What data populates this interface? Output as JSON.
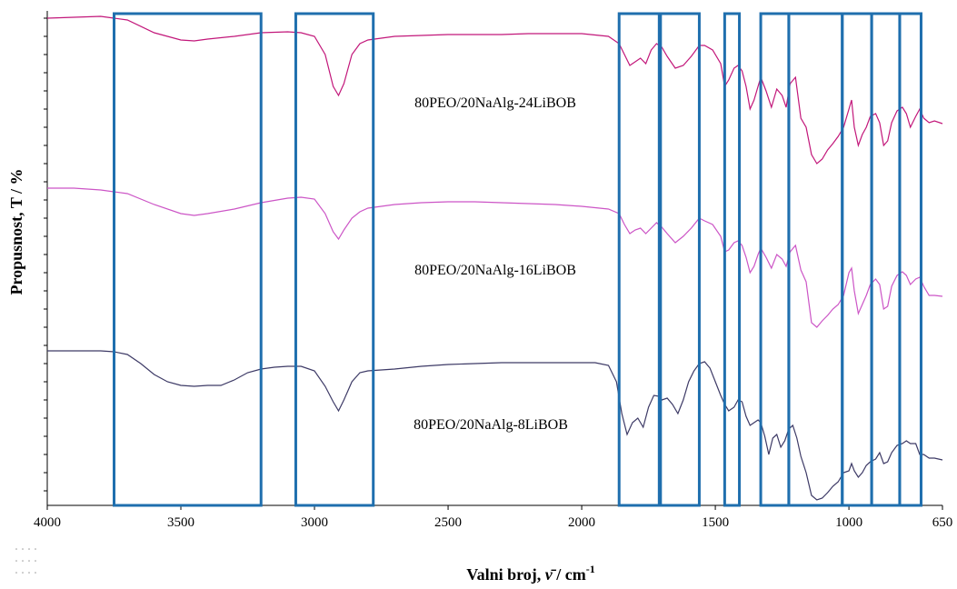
{
  "chart_data": {
    "type": "line",
    "title": "",
    "xlabel": {
      "main": "Valni broj, ",
      "symbol": "ν̄",
      "unit": " / cm",
      "sup": "-1"
    },
    "ylabel": "Propusnost, T / %",
    "xlim": [
      4000,
      650
    ],
    "x_reversed": true,
    "x_ticks": [
      4000,
      3500,
      3000,
      2500,
      2000,
      1500,
      1000,
      650
    ],
    "grid": false,
    "legend": "none",
    "highlight_color": "#1f6fae",
    "highlight_bands": [
      {
        "from": 3750,
        "to": 3200
      },
      {
        "from": 3070,
        "to": 2780
      },
      {
        "from": 1860,
        "to": 1710
      },
      {
        "from": 1705,
        "to": 1560
      },
      {
        "from": 1465,
        "to": 1410
      },
      {
        "from": 1330,
        "to": 1225
      },
      {
        "from": 1225,
        "to": 1025
      },
      {
        "from": 1025,
        "to": 915
      },
      {
        "from": 915,
        "to": 810
      },
      {
        "from": 810,
        "to": 730
      }
    ],
    "series": [
      {
        "name": "80PEO/20NaAlg-24LiBOB",
        "color": "#c2177a",
        "y_offset": 0,
        "points": [
          [
            4000,
            20
          ],
          [
            3900,
            19
          ],
          [
            3800,
            18
          ],
          [
            3750,
            20
          ],
          [
            3700,
            22
          ],
          [
            3600,
            36
          ],
          [
            3500,
            44
          ],
          [
            3450,
            45
          ],
          [
            3400,
            43
          ],
          [
            3300,
            40
          ],
          [
            3200,
            36
          ],
          [
            3100,
            35
          ],
          [
            3050,
            36
          ],
          [
            3000,
            40
          ],
          [
            2960,
            60
          ],
          [
            2930,
            95
          ],
          [
            2910,
            105
          ],
          [
            2890,
            92
          ],
          [
            2860,
            60
          ],
          [
            2830,
            48
          ],
          [
            2800,
            44
          ],
          [
            2700,
            40
          ],
          [
            2600,
            39
          ],
          [
            2500,
            38
          ],
          [
            2400,
            38
          ],
          [
            2300,
            38
          ],
          [
            2200,
            37
          ],
          [
            2100,
            37
          ],
          [
            2000,
            37
          ],
          [
            1900,
            40
          ],
          [
            1860,
            48
          ],
          [
            1840,
            60
          ],
          [
            1820,
            72
          ],
          [
            1800,
            68
          ],
          [
            1780,
            64
          ],
          [
            1760,
            70
          ],
          [
            1740,
            55
          ],
          [
            1720,
            48
          ],
          [
            1700,
            52
          ],
          [
            1680,
            62
          ],
          [
            1650,
            75
          ],
          [
            1620,
            72
          ],
          [
            1590,
            62
          ],
          [
            1560,
            50
          ],
          [
            1540,
            50
          ],
          [
            1510,
            55
          ],
          [
            1480,
            70
          ],
          [
            1465,
            95
          ],
          [
            1450,
            88
          ],
          [
            1430,
            75
          ],
          [
            1415,
            72
          ],
          [
            1400,
            78
          ],
          [
            1385,
            95
          ],
          [
            1370,
            120
          ],
          [
            1355,
            110
          ],
          [
            1340,
            95
          ],
          [
            1330,
            85
          ],
          [
            1310,
            100
          ],
          [
            1290,
            118
          ],
          [
            1270,
            98
          ],
          [
            1250,
            105
          ],
          [
            1235,
            118
          ],
          [
            1220,
            92
          ],
          [
            1200,
            85
          ],
          [
            1180,
            130
          ],
          [
            1160,
            140
          ],
          [
            1140,
            170
          ],
          [
            1120,
            180
          ],
          [
            1100,
            175
          ],
          [
            1080,
            165
          ],
          [
            1060,
            158
          ],
          [
            1040,
            150
          ],
          [
            1020,
            140
          ],
          [
            1000,
            120
          ],
          [
            990,
            110
          ],
          [
            980,
            140
          ],
          [
            965,
            160
          ],
          [
            950,
            148
          ],
          [
            935,
            140
          ],
          [
            920,
            128
          ],
          [
            900,
            125
          ],
          [
            885,
            135
          ],
          [
            870,
            160
          ],
          [
            855,
            155
          ],
          [
            840,
            135
          ],
          [
            820,
            122
          ],
          [
            800,
            118
          ],
          [
            785,
            125
          ],
          [
            770,
            140
          ],
          [
            750,
            128
          ],
          [
            735,
            120
          ],
          [
            720,
            130
          ],
          [
            700,
            135
          ],
          [
            680,
            133
          ],
          [
            650,
            136
          ]
        ]
      },
      {
        "name": "80PEO/20NaAlg-16LiBOB",
        "color": "#cc55c6",
        "y_offset": 185,
        "points": [
          [
            4000,
            22
          ],
          [
            3900,
            22
          ],
          [
            3800,
            24
          ],
          [
            3700,
            28
          ],
          [
            3600,
            40
          ],
          [
            3500,
            50
          ],
          [
            3450,
            52
          ],
          [
            3400,
            50
          ],
          [
            3300,
            45
          ],
          [
            3200,
            38
          ],
          [
            3100,
            33
          ],
          [
            3050,
            32
          ],
          [
            3000,
            34
          ],
          [
            2960,
            50
          ],
          [
            2930,
            70
          ],
          [
            2910,
            78
          ],
          [
            2890,
            68
          ],
          [
            2860,
            55
          ],
          [
            2830,
            48
          ],
          [
            2800,
            44
          ],
          [
            2700,
            40
          ],
          [
            2600,
            38
          ],
          [
            2500,
            37
          ],
          [
            2400,
            37
          ],
          [
            2300,
            38
          ],
          [
            2200,
            39
          ],
          [
            2100,
            40
          ],
          [
            2000,
            42
          ],
          [
            1900,
            45
          ],
          [
            1860,
            50
          ],
          [
            1840,
            62
          ],
          [
            1820,
            72
          ],
          [
            1800,
            68
          ],
          [
            1780,
            66
          ],
          [
            1760,
            72
          ],
          [
            1740,
            66
          ],
          [
            1720,
            60
          ],
          [
            1700,
            65
          ],
          [
            1680,
            72
          ],
          [
            1650,
            82
          ],
          [
            1620,
            75
          ],
          [
            1590,
            66
          ],
          [
            1560,
            55
          ],
          [
            1540,
            58
          ],
          [
            1510,
            62
          ],
          [
            1480,
            75
          ],
          [
            1465,
            92
          ],
          [
            1450,
            90
          ],
          [
            1430,
            82
          ],
          [
            1415,
            80
          ],
          [
            1400,
            85
          ],
          [
            1385,
            98
          ],
          [
            1370,
            115
          ],
          [
            1355,
            108
          ],
          [
            1340,
            95
          ],
          [
            1330,
            88
          ],
          [
            1310,
            98
          ],
          [
            1290,
            110
          ],
          [
            1270,
            95
          ],
          [
            1250,
            100
          ],
          [
            1235,
            108
          ],
          [
            1220,
            92
          ],
          [
            1200,
            85
          ],
          [
            1180,
            112
          ],
          [
            1160,
            125
          ],
          [
            1140,
            170
          ],
          [
            1120,
            175
          ],
          [
            1100,
            168
          ],
          [
            1080,
            162
          ],
          [
            1060,
            155
          ],
          [
            1040,
            150
          ],
          [
            1020,
            140
          ],
          [
            1000,
            115
          ],
          [
            990,
            110
          ],
          [
            980,
            135
          ],
          [
            965,
            160
          ],
          [
            950,
            150
          ],
          [
            935,
            140
          ],
          [
            920,
            128
          ],
          [
            900,
            122
          ],
          [
            885,
            128
          ],
          [
            870,
            155
          ],
          [
            855,
            152
          ],
          [
            840,
            130
          ],
          [
            820,
            118
          ],
          [
            800,
            114
          ],
          [
            785,
            118
          ],
          [
            770,
            128
          ],
          [
            750,
            122
          ],
          [
            735,
            120
          ],
          [
            720,
            130
          ],
          [
            700,
            140
          ],
          [
            680,
            140
          ],
          [
            650,
            141
          ]
        ]
      },
      {
        "name": "80PEO/20NaAlg-8LiBOB",
        "color": "#3d3a66",
        "y_offset": 370,
        "points": [
          [
            4000,
            16
          ],
          [
            3900,
            16
          ],
          [
            3800,
            16
          ],
          [
            3750,
            17
          ],
          [
            3700,
            20
          ],
          [
            3650,
            30
          ],
          [
            3600,
            42
          ],
          [
            3550,
            50
          ],
          [
            3500,
            54
          ],
          [
            3450,
            55
          ],
          [
            3400,
            54
          ],
          [
            3350,
            54
          ],
          [
            3300,
            48
          ],
          [
            3250,
            40
          ],
          [
            3200,
            36
          ],
          [
            3150,
            34
          ],
          [
            3100,
            33
          ],
          [
            3050,
            33
          ],
          [
            3000,
            38
          ],
          [
            2960,
            55
          ],
          [
            2930,
            72
          ],
          [
            2910,
            82
          ],
          [
            2890,
            70
          ],
          [
            2860,
            50
          ],
          [
            2830,
            40
          ],
          [
            2800,
            38
          ],
          [
            2750,
            37
          ],
          [
            2700,
            36
          ],
          [
            2600,
            33
          ],
          [
            2500,
            31
          ],
          [
            2400,
            30
          ],
          [
            2300,
            29
          ],
          [
            2200,
            29
          ],
          [
            2100,
            29
          ],
          [
            2000,
            29
          ],
          [
            1950,
            29
          ],
          [
            1900,
            32
          ],
          [
            1870,
            50
          ],
          [
            1850,
            85
          ],
          [
            1830,
            108
          ],
          [
            1810,
            95
          ],
          [
            1790,
            90
          ],
          [
            1770,
            100
          ],
          [
            1750,
            78
          ],
          [
            1730,
            65
          ],
          [
            1710,
            66
          ],
          [
            1700,
            70
          ],
          [
            1680,
            68
          ],
          [
            1660,
            75
          ],
          [
            1640,
            85
          ],
          [
            1620,
            70
          ],
          [
            1600,
            50
          ],
          [
            1580,
            38
          ],
          [
            1560,
            30
          ],
          [
            1540,
            28
          ],
          [
            1520,
            35
          ],
          [
            1500,
            50
          ],
          [
            1480,
            65
          ],
          [
            1465,
            75
          ],
          [
            1450,
            82
          ],
          [
            1430,
            78
          ],
          [
            1415,
            70
          ],
          [
            1400,
            72
          ],
          [
            1385,
            88
          ],
          [
            1370,
            98
          ],
          [
            1355,
            95
          ],
          [
            1340,
            92
          ],
          [
            1330,
            95
          ],
          [
            1315,
            110
          ],
          [
            1300,
            130
          ],
          [
            1285,
            112
          ],
          [
            1270,
            108
          ],
          [
            1255,
            122
          ],
          [
            1240,
            115
          ],
          [
            1225,
            102
          ],
          [
            1210,
            98
          ],
          [
            1195,
            112
          ],
          [
            1180,
            132
          ],
          [
            1160,
            150
          ],
          [
            1140,
            175
          ],
          [
            1120,
            180
          ],
          [
            1100,
            178
          ],
          [
            1080,
            172
          ],
          [
            1060,
            165
          ],
          [
            1040,
            160
          ],
          [
            1020,
            150
          ],
          [
            1000,
            148
          ],
          [
            990,
            140
          ],
          [
            980,
            148
          ],
          [
            965,
            155
          ],
          [
            950,
            150
          ],
          [
            935,
            142
          ],
          [
            920,
            138
          ],
          [
            900,
            135
          ],
          [
            885,
            128
          ],
          [
            870,
            140
          ],
          [
            855,
            138
          ],
          [
            840,
            128
          ],
          [
            820,
            120
          ],
          [
            800,
            118
          ],
          [
            785,
            115
          ],
          [
            770,
            118
          ],
          [
            750,
            118
          ],
          [
            735,
            130
          ],
          [
            720,
            130
          ],
          [
            700,
            134
          ],
          [
            680,
            134
          ],
          [
            650,
            136
          ]
        ]
      }
    ]
  }
}
